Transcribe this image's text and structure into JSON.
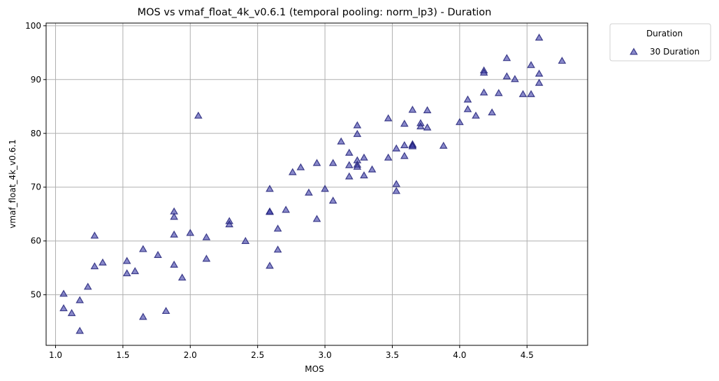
{
  "chart_data": {
    "type": "scatter",
    "title": "MOS vs vmaf_float_4k_v0.6.1 (temporal pooling: norm_lp3) - Duration",
    "xlabel": "MOS",
    "ylabel": "vmaf_float_4k_v0.6.1",
    "xlim": [
      0.93,
      4.95
    ],
    "ylim": [
      40.6,
      100.5
    ],
    "x_ticks": [
      "1.0",
      "1.5",
      "2.0",
      "2.5",
      "3.0",
      "3.5",
      "4.0",
      "4.5"
    ],
    "x_tick_values": [
      1.0,
      1.5,
      2.0,
      2.5,
      3.0,
      3.5,
      4.0,
      4.5
    ],
    "y_ticks": [
      "50",
      "60",
      "70",
      "80",
      "90",
      "100"
    ],
    "y_tick_values": [
      50,
      60,
      70,
      80,
      90,
      100
    ],
    "grid": true,
    "legend": {
      "title": "Duration",
      "placement": "outside-top-right"
    },
    "marker": "triangle",
    "series": [
      {
        "name": "30 Duration",
        "color": "#3a3aa6",
        "x": [
          1.06,
          1.06,
          1.12,
          1.18,
          1.18,
          1.24,
          1.29,
          1.29,
          1.35,
          1.53,
          1.53,
          1.59,
          1.65,
          1.65,
          1.76,
          1.82,
          1.88,
          1.88,
          1.88,
          1.88,
          1.94,
          2.0,
          2.06,
          2.12,
          2.12,
          2.29,
          2.29,
          2.41,
          2.59,
          2.59,
          2.59,
          2.59,
          2.65,
          2.65,
          2.71,
          2.76,
          2.82,
          2.88,
          2.94,
          2.94,
          3.0,
          3.06,
          3.06,
          3.12,
          3.18,
          3.18,
          3.18,
          3.24,
          3.24,
          3.24,
          3.24,
          3.24,
          3.29,
          3.29,
          3.35,
          3.47,
          3.47,
          3.53,
          3.53,
          3.53,
          3.59,
          3.59,
          3.59,
          3.65,
          3.65,
          3.65,
          3.65,
          3.71,
          3.71,
          3.76,
          3.76,
          3.88,
          4.0,
          4.06,
          4.06,
          4.12,
          4.18,
          4.18,
          4.18,
          4.24,
          4.29,
          4.35,
          4.35,
          4.41,
          4.47,
          4.53,
          4.53,
          4.59,
          4.59,
          4.59,
          4.76
        ],
        "y": [
          50.2,
          47.5,
          46.6,
          43.3,
          49.0,
          51.5,
          61.0,
          55.3,
          56.0,
          56.3,
          54.0,
          54.4,
          58.5,
          45.9,
          57.4,
          47.0,
          65.5,
          64.5,
          61.2,
          55.6,
          53.2,
          61.5,
          83.3,
          60.7,
          56.7,
          63.7,
          63.1,
          60.0,
          69.7,
          65.5,
          65.4,
          55.4,
          62.3,
          58.4,
          65.8,
          72.8,
          73.7,
          69.0,
          74.5,
          64.1,
          69.7,
          74.5,
          67.5,
          78.5,
          76.4,
          74.1,
          72.0,
          81.5,
          79.9,
          75.0,
          74.2,
          73.8,
          75.5,
          72.2,
          73.3,
          82.8,
          75.5,
          77.2,
          70.6,
          69.3,
          81.8,
          77.8,
          75.8,
          84.4,
          78.0,
          77.8,
          77.6,
          81.9,
          81.3,
          84.3,
          81.1,
          77.7,
          82.1,
          86.3,
          84.5,
          83.3,
          91.7,
          91.3,
          87.6,
          83.9,
          87.5,
          94.0,
          90.6,
          90.1,
          87.3,
          92.7,
          87.3,
          97.8,
          91.1,
          89.4,
          93.5
        ]
      }
    ]
  }
}
